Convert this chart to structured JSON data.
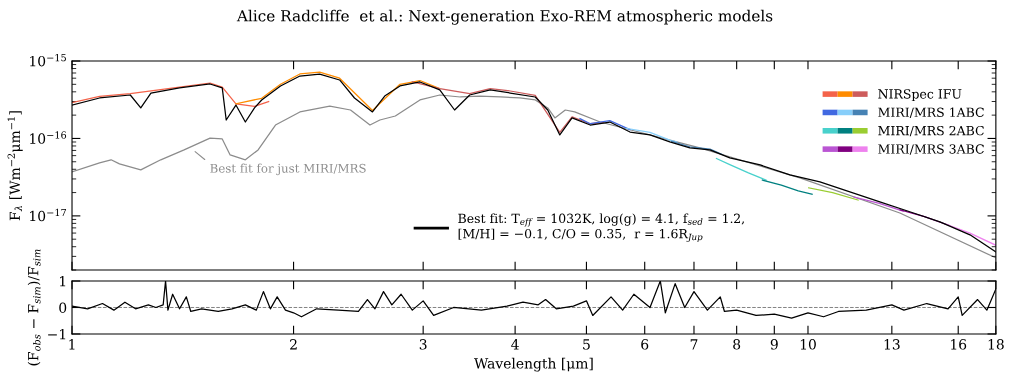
{
  "chart_data": [
    {
      "type": "line",
      "title": "Alice Radcliffe  et al.: Next-generation Exo-REM atmospheric models",
      "ylabel": "F$_{λ}$ [Wm$^{−2}$μm$^{−1}$]",
      "log": "xy",
      "xlim": [
        1,
        18
      ],
      "ylim": [
        2e-18,
        1e-15
      ],
      "xticks": [
        {
          "value": 1,
          "label": null
        },
        {
          "value": 2,
          "label": null
        },
        {
          "value": 3,
          "label": null
        },
        {
          "value": 4,
          "label": null
        },
        {
          "value": 5,
          "label": null
        },
        {
          "value": 6,
          "label": null
        },
        {
          "value": 7,
          "label": null
        },
        {
          "value": 8,
          "label": null
        },
        {
          "value": 9,
          "label": null
        },
        {
          "value": 10,
          "label": null
        },
        {
          "value": 13,
          "label": null
        },
        {
          "value": 16,
          "label": null
        },
        {
          "value": 18,
          "label": null
        }
      ],
      "yticks": [
        {
          "value": 1e-17,
          "label": "10$^{−17}$"
        },
        {
          "value": 1e-16,
          "label": "10$^{−16}$"
        },
        {
          "value": 1e-15,
          "label": "10$^{−15}$"
        }
      ],
      "tick_labels": "y",
      "legend": "top right",
      "grid": false,
      "line_style": "solid",
      "marker": "none",
      "annotations": [
        {
          "text": "Best fit for just MIRI/MRS",
          "x": 1.46,
          "y": 7.11e-17
        }
      ],
      "series": [
        {
          "color": "#f4634a",
          "x": [
            1.0,
            1.09,
            1.2,
            1.4,
            1.54,
            1.6,
            1.67,
            1.77,
            1.85
          ],
          "values": [
            2.9e-16,
            3.5e-16,
            3.8e-16,
            4.6e-16,
            5.2e-16,
            4.6e-16,
            2.8e-16,
            2.6e-16,
            3e-16
          ]
        },
        {
          "color": "#ff8c00",
          "x": [
            1.67,
            1.81,
            1.92,
            2.04,
            2.17,
            2.31,
            2.56,
            2.79,
            2.97,
            3.16
          ],
          "values": [
            2.8e-16,
            3.3e-16,
            5e-16,
            6.8e-16,
            7.2e-16,
            6e-16,
            2.3e-16,
            5e-16,
            5.6e-16,
            4.4e-16
          ]
        },
        {
          "name": "NIRSpec IFU",
          "color": "#cd5c5c",
          "x": [
            2.9,
            3.16,
            3.47,
            3.7,
            3.94,
            4.26,
            4.6,
            4.78,
            5.06,
            5.27
          ],
          "values": [
            5.4e-16,
            4.4e-16,
            3.8e-16,
            4.4e-16,
            4.1e-16,
            3.6e-16,
            1.2e-16,
            1.9e-16,
            1.55e-16,
            1.6e-16
          ]
        },
        {
          "color": "#4169e1",
          "x": [
            4.9,
            5.06,
            5.38,
            5.73
          ],
          "values": [
            1.8e-16,
            1.55e-16,
            1.7e-16,
            1.3e-16
          ]
        },
        {
          "color": "#87cefa",
          "x": [
            5.66,
            6.1,
            6.49,
            6.63
          ],
          "values": [
            1.35e-16,
            1.2e-16,
            9.5e-17,
            9e-17
          ]
        },
        {
          "name": "MIRI/MRS 1ABC",
          "color": "#4682b4",
          "x": [
            6.53,
            6.91,
            7.36,
            7.65
          ],
          "values": [
            9.2e-17,
            7.8e-17,
            7.3e-17,
            6.2e-17
          ]
        },
        {
          "color": "#48d1cc",
          "x": [
            7.51,
            7.83,
            8.3,
            8.77
          ],
          "values": [
            5.5e-17,
            4.6e-17,
            3.6e-17,
            2.9e-17
          ]
        },
        {
          "color": "#008080",
          "x": [
            8.67,
            9.2,
            9.7,
            10.13
          ],
          "values": [
            2.9e-17,
            2.5e-17,
            2.1e-17,
            1.9e-17
          ]
        },
        {
          "name": "MIRI/MRS 2ABC",
          "color": "#9acd32",
          "x": [
            10.02,
            10.8,
            11.7
          ],
          "values": [
            2.3e-17,
            2e-17,
            1.6e-17
          ]
        },
        {
          "color": "#ba55d3",
          "x": [
            11.55,
            12.5,
            13.47
          ],
          "values": [
            1.75e-17,
            1.45e-17,
            1.15e-17
          ]
        },
        {
          "color": "#800080",
          "x": [
            13.34,
            14.4,
            15.57
          ],
          "values": [
            1.2e-17,
            9.8e-18,
            7.5e-18
          ]
        },
        {
          "name": "MIRI/MRS 3ABC",
          "color": "#ee82ee",
          "x": [
            15.41,
            16.6,
            17.98
          ],
          "values": [
            7.8e-18,
            6e-18,
            4.2e-18
          ]
        },
        {
          "name": "Best fit: T$_{eff}$ = 1032K, log(g) = 4.1, f$_{sed}$ = 1.2,\n[M/H] = −0.1, C/O = 0.35,  r = 1.6R$_{Jup}$",
          "color": "#000000",
          "x": [
            1.0,
            1.09,
            1.2,
            1.24,
            1.28,
            1.4,
            1.54,
            1.6,
            1.62,
            1.67,
            1.72,
            1.77,
            1.81,
            1.92,
            2.04,
            2.17,
            2.31,
            2.42,
            2.56,
            2.66,
            2.79,
            2.97,
            3.16,
            3.31,
            3.47,
            3.7,
            3.94,
            4.26,
            4.43,
            4.6,
            4.78,
            5.06,
            5.38,
            5.73,
            6.1,
            6.49,
            6.91,
            7.36,
            7.83,
            8.61,
            9.45,
            10.38,
            11.4,
            12.52,
            13.75,
            15.11,
            16.6,
            18.0
          ],
          "values": [
            2.7e-16,
            3.33e-16,
            3.64e-16,
            2.48e-16,
            3.86e-16,
            4.49e-16,
            5.05e-16,
            4.49e-16,
            1.73e-16,
            2.7e-16,
            1.63e-16,
            2.48e-16,
            3.14e-16,
            4.76e-16,
            6.4e-16,
            6.79e-16,
            5.69e-16,
            3.33e-16,
            2.2e-16,
            3.53e-16,
            4.76e-16,
            5.36e-16,
            4.23e-16,
            2.33e-16,
            3.64e-16,
            4.23e-16,
            3.86e-16,
            3.43e-16,
            2.33e-16,
            1.11e-16,
            1.84e-16,
            1.49e-16,
            1.63e-16,
            1.21e-16,
            1.11e-16,
            9.02e-17,
            7.54e-17,
            7.11e-17,
            5.6e-17,
            4.55e-17,
            3.38e-17,
            2.75e-17,
            2.04e-17,
            1.52e-17,
            1.13e-17,
            8.37e-18,
            5.69e-18,
            3.43e-18
          ]
        },
        {
          "color": "#8c8c8c",
          "x": [
            1.0,
            1.09,
            1.13,
            1.16,
            1.24,
            1.32,
            1.42,
            1.54,
            1.6,
            1.64,
            1.72,
            1.79,
            1.89,
            2.04,
            2.24,
            2.39,
            2.54,
            2.62,
            2.75,
            2.97,
            3.16,
            3.37,
            3.58,
            3.82,
            4.06,
            4.26,
            4.43,
            4.53,
            4.68,
            4.82,
            5.22,
            7.13,
            9.75,
            13.33,
            18.0
          ],
          "values": [
            3.7e-17,
            4.83e-17,
            5.3e-17,
            4.69e-17,
            3.93e-17,
            5.3e-17,
            7.11e-17,
            1.01e-16,
            9.86e-17,
            6.12e-17,
            5.3e-17,
            7.11e-17,
            1.49e-16,
            2.2e-16,
            2.62e-16,
            2.33e-16,
            1.49e-16,
            1.73e-16,
            1.95e-16,
            3.14e-16,
            3.64e-16,
            3.43e-16,
            3.53e-16,
            3.43e-16,
            3.33e-16,
            3.14e-16,
            2.48e-16,
            1.84e-16,
            2.33e-16,
            2.2e-16,
            1.63e-16,
            7.54e-17,
            3.09e-17,
            1.09e-17,
            2.87e-18
          ]
        }
      ]
    },
    {
      "type": "line",
      "xlabel": "Wavelength [μm]",
      "ylabel": "(F$_{obs}$ − F$_{sim}$)/F$_{sim}$",
      "log": "x",
      "xlim": [
        1,
        18
      ],
      "ylim": [
        -1,
        1
      ],
      "xticks": [
        1,
        2,
        3,
        4,
        5,
        6,
        7,
        8,
        9,
        10,
        13,
        16,
        18
      ],
      "yticks": [
        {
          "value": -1,
          "label": "−1"
        },
        0,
        1
      ],
      "grid": false,
      "legend": false,
      "line_style": "solid",
      "marker": "none",
      "ref_lines": [
        {
          "axis": "y",
          "value": 0,
          "color": "#808080",
          "line_style": "dashed"
        }
      ],
      "series": [
        {
          "color": "#000000",
          "x": [
            1.0,
            1.05,
            1.1,
            1.14,
            1.18,
            1.22,
            1.27,
            1.3,
            1.33,
            1.34,
            1.35,
            1.37,
            1.4,
            1.43,
            1.45,
            1.5,
            1.58,
            1.65,
            1.72,
            1.78,
            1.82,
            1.86,
            1.9,
            1.95,
            2.0,
            2.05,
            2.15,
            2.3,
            2.45,
            2.52,
            2.58,
            2.65,
            2.72,
            2.8,
            2.9,
            3.0,
            3.1,
            3.3,
            3.6,
            3.9,
            4.1,
            4.3,
            4.4,
            4.55,
            4.8,
            5.0,
            5.1,
            5.4,
            5.6,
            5.8,
            6.1,
            6.3,
            6.4,
            6.6,
            6.8,
            7.0,
            7.3,
            7.6,
            7.7,
            8.0,
            8.5,
            9.0,
            9.5,
            10.0,
            10.5,
            11.0,
            12.0,
            13.0,
            13.5,
            14.5,
            15.5,
            16.0,
            16.2,
            17.0,
            17.5,
            18.0
          ],
          "values": [
            0.05,
            -0.05,
            0.15,
            -0.1,
            0.2,
            -0.05,
            0.1,
            0.0,
            0.1,
            1.0,
            -0.1,
            0.5,
            -0.05,
            0.4,
            -0.15,
            -0.05,
            -0.15,
            -0.05,
            0.1,
            -0.1,
            0.6,
            -0.05,
            0.4,
            -0.1,
            -0.2,
            -0.35,
            -0.05,
            -0.1,
            -0.15,
            0.3,
            -0.05,
            0.6,
            0.1,
            0.5,
            -0.1,
            0.25,
            -0.3,
            0.0,
            -0.1,
            0.05,
            0.2,
            0.1,
            0.3,
            -0.05,
            0.05,
            0.25,
            -0.3,
            0.4,
            -0.1,
            0.5,
            0.0,
            1.0,
            -0.2,
            0.9,
            0.0,
            0.6,
            -0.1,
            0.4,
            -0.15,
            -0.1,
            -0.3,
            -0.25,
            -0.4,
            -0.2,
            -0.35,
            -0.15,
            -0.1,
            0.1,
            -0.1,
            0.15,
            -0.05,
            0.4,
            -0.3,
            0.3,
            -0.1,
            0.7
          ]
        }
      ]
    }
  ]
}
